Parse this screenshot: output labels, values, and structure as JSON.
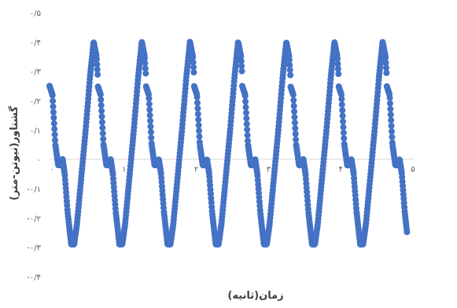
{
  "chart_data": {
    "type": "scatter",
    "title": "",
    "xlabel": "زمان(ثانیه)",
    "ylabel": "گشتاور(نیوتن-متر)",
    "xlim": [
      0,
      5
    ],
    "ylim": [
      -0.4,
      0.5
    ],
    "x_ticks": [
      0,
      1,
      2,
      3,
      4,
      5
    ],
    "x_tick_labels": [
      "۰",
      "۱",
      "۲",
      "۳",
      "۴",
      "۵"
    ],
    "y_ticks": [
      -0.4,
      -0.3,
      -0.2,
      -0.1,
      0,
      0.1,
      0.2,
      0.3,
      0.4,
      0.5
    ],
    "y_tick_labels": [
      "-۰/۴",
      "-۰/۳",
      "-۰/۲",
      "-۰/۱",
      "۰",
      "۰/۱",
      "۰/۲",
      "۰/۳",
      "۰/۴",
      "۰/۵"
    ],
    "grid": false,
    "legend": "none",
    "marker_color": "#4472C4",
    "period": 0.667,
    "x_end": 4.95,
    "keypoints": [
      [
        0.0,
        0.25
      ],
      [
        0.04,
        0.22
      ],
      [
        0.08,
        0.05
      ],
      [
        0.12,
        -0.02
      ],
      [
        0.15,
        -0.02
      ],
      [
        0.18,
        0.0
      ],
      [
        0.21,
        -0.05
      ],
      [
        0.25,
        -0.18
      ],
      [
        0.3,
        -0.29
      ],
      [
        0.34,
        -0.29
      ],
      [
        0.38,
        -0.22
      ],
      [
        0.44,
        -0.06
      ],
      [
        0.5,
        0.1
      ],
      [
        0.56,
        0.28
      ],
      [
        0.61,
        0.4
      ],
      [
        0.65,
        0.35
      ],
      [
        0.71,
        0.12
      ],
      [
        0.75,
        0.05
      ],
      [
        0.79,
        -0.01
      ],
      [
        0.82,
        -0.02
      ],
      [
        0.85,
        0.0
      ],
      [
        0.88,
        -0.05
      ],
      [
        0.92,
        -0.18
      ],
      [
        0.97,
        -0.29
      ]
    ]
  }
}
